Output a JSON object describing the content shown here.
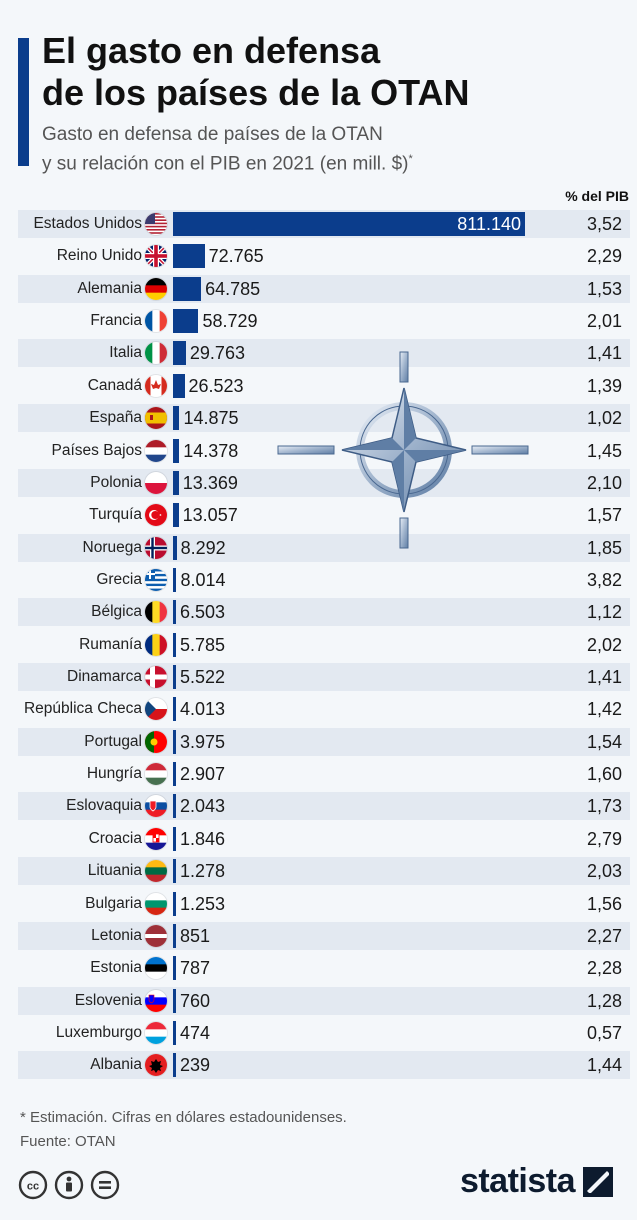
{
  "header": {
    "title_line1": "El gasto en defensa",
    "title_line2": "de los países de la OTAN",
    "subtitle_line1": "Gasto en defensa de países de la OTAN",
    "subtitle_line2": "y su relación con el PIB en 2021 (en mill. $)",
    "subtitle_mark": "*"
  },
  "chart_data": {
    "type": "bar",
    "orientation": "horizontal",
    "pib_column_header": "% del PIB",
    "categories": [
      "Estados Unidos",
      "Reino Unido",
      "Alemania",
      "Francia",
      "Italia",
      "Canadá",
      "España",
      "Países Bajos",
      "Polonia",
      "Turquía",
      "Noruega",
      "Grecia",
      "Bélgica",
      "Rumanía",
      "Dinamarca",
      "República Checa",
      "Portugal",
      "Hungría",
      "Eslovaquia",
      "Croacia",
      "Lituania",
      "Bulgaria",
      "Letonia",
      "Estonia",
      "Eslovenia",
      "Luxemburgo",
      "Albania"
    ],
    "value_labels": [
      "811.140",
      "72.765",
      "64.785",
      "58.729",
      "29.763",
      "26.523",
      "14.875",
      "14.378",
      "13.369",
      "13.057",
      "8.292",
      "8.014",
      "6.503",
      "5.785",
      "5.522",
      "4.013",
      "3.975",
      "2.907",
      "2.043",
      "1.846",
      "1.278",
      "1.253",
      "851",
      "787",
      "760",
      "474",
      "239"
    ],
    "values": [
      811140,
      72765,
      64785,
      58729,
      29763,
      26523,
      14875,
      14378,
      13369,
      13057,
      8292,
      8014,
      6503,
      5785,
      5522,
      4013,
      3975,
      2907,
      2043,
      1846,
      1278,
      1253,
      851,
      787,
      760,
      474,
      239
    ],
    "pib_labels": [
      "3,52",
      "2,29",
      "1,53",
      "2,01",
      "1,41",
      "1,39",
      "1,02",
      "1,45",
      "2,10",
      "1,57",
      "1,85",
      "3,82",
      "1,12",
      "2,02",
      "1,41",
      "1,42",
      "1,54",
      "1,60",
      "1,73",
      "2,79",
      "2,03",
      "1,56",
      "2,27",
      "2,28",
      "1,28",
      "0,57",
      "1,44"
    ],
    "pib_percent": [
      3.52,
      2.29,
      1.53,
      2.01,
      1.41,
      1.39,
      1.02,
      1.45,
      2.1,
      1.57,
      1.85,
      3.82,
      1.12,
      2.02,
      1.41,
      1.42,
      1.54,
      1.6,
      1.73,
      2.79,
      2.03,
      1.56,
      2.27,
      2.28,
      1.28,
      0.57,
      1.44
    ],
    "bar_color": "#0b3d8c",
    "xlim": [
      0,
      811140
    ],
    "grid": false
  },
  "flags": [
    "us",
    "gb",
    "de",
    "fr",
    "it",
    "ca",
    "es",
    "nl",
    "pl",
    "tr",
    "no",
    "gr",
    "be",
    "ro",
    "dk",
    "cz",
    "pt",
    "hu",
    "sk",
    "hr",
    "lt",
    "bg",
    "lv",
    "ee",
    "si",
    "lu",
    "al"
  ],
  "footer": {
    "note": "* Estimación. Cifras en dólares estadounidenses.",
    "source": "Fuente: OTAN",
    "license_icons": [
      "cc-icon",
      "attribution-icon",
      "no-derivatives-icon"
    ],
    "logo": "statista"
  },
  "colors": {
    "accent": "#0b3d8c",
    "stripe": "#e3e9f1",
    "background": "#f4f7fa"
  }
}
